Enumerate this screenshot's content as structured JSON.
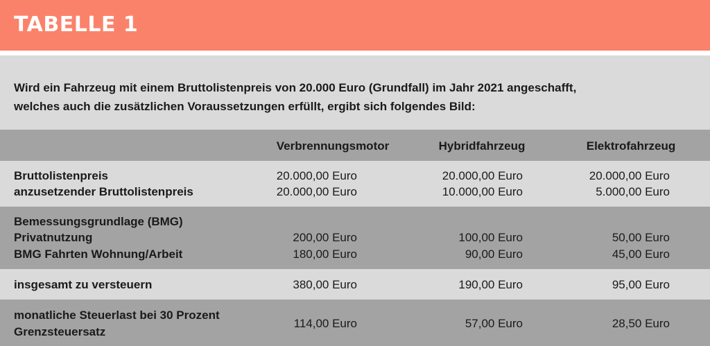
{
  "title": "TABELLE 1",
  "intro": {
    "line1": "Wird ein Fahrzeug mit einem Bruttolistenpreis von 20.000 Euro (Grundfall) im Jahr 2021 angeschafft,",
    "line2": "welches auch die zusätzlichen Voraussetzungen erfüllt, ergibt sich folgendes Bild:"
  },
  "columns": [
    "Verbrennungsmotor",
    "Hybridfahrzeug",
    "Elektrofahrzeug"
  ],
  "rows": {
    "listenpreis": {
      "label": "Bruttolistenpreis",
      "values": [
        "20.000,00 Euro",
        "20.000,00 Euro",
        "20.000,00 Euro"
      ]
    },
    "anzusetzend": {
      "label": "anzusetzender Bruttolistenpreis",
      "values": [
        "20.000,00 Euro",
        "10.000,00 Euro",
        "5.000,00 Euro"
      ]
    },
    "bmg": {
      "label": "Bemessungsgrundlage (BMG)"
    },
    "privat": {
      "label": "Privatnutzung",
      "values": [
        "200,00 Euro",
        "100,00 Euro",
        "50,00 Euro"
      ]
    },
    "fahrten": {
      "label": "BMG Fahrten Wohnung/Arbeit",
      "values": [
        "180,00 Euro",
        "90,00 Euro",
        "45,00 Euro"
      ]
    },
    "insgesamt": {
      "label": "insgesamt zu versteuern",
      "values": [
        "380,00 Euro",
        "190,00 Euro",
        "95,00 Euro"
      ]
    },
    "steuerlast": {
      "label_line1": "monatliche Steuerlast bei 30 Prozent",
      "label_line2": "Grenzsteuersatz",
      "values": [
        "114,00 Euro",
        "57,00 Euro",
        "28,50 Euro"
      ]
    }
  },
  "colors": {
    "header": "#fb826a",
    "light_row": "#dadada",
    "dark_row": "#a3a3a3"
  }
}
